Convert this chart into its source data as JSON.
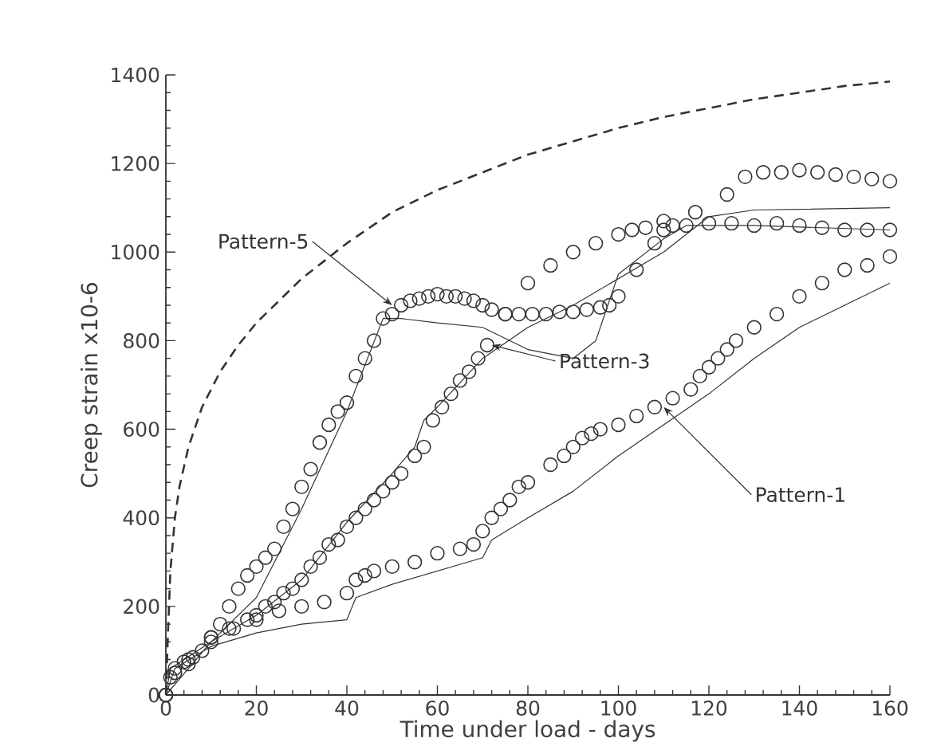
{
  "chart_data": {
    "type": "line",
    "xlabel": "Time under load - days",
    "ylabel": "Creep strain x10-6",
    "xlim": [
      0,
      160
    ],
    "ylim": [
      0,
      1400
    ],
    "xticks": [
      0,
      20,
      40,
      60,
      80,
      100,
      120,
      140,
      160
    ],
    "yticks": [
      0,
      200,
      400,
      600,
      800,
      1000,
      1200,
      1400
    ],
    "grid": false,
    "annotations": [
      {
        "text": "Pattern-5",
        "x": 50,
        "y": 880
      },
      {
        "text": "Pattern-3",
        "x": 72,
        "y": 790
      },
      {
        "text": "Pattern-1",
        "x": 110,
        "y": 650
      }
    ],
    "series": [
      {
        "line_style": "dashed",
        "color": "#333333",
        "x": [
          0,
          0.5,
          1,
          2,
          3,
          5,
          8,
          12,
          16,
          20,
          30,
          40,
          50,
          60,
          70,
          80,
          90,
          100,
          110,
          120,
          130,
          140,
          150,
          160
        ],
        "values": [
          0,
          150,
          280,
          400,
          470,
          560,
          650,
          730,
          790,
          840,
          940,
          1020,
          1090,
          1140,
          1180,
          1220,
          1250,
          1280,
          1305,
          1325,
          1345,
          1360,
          1375,
          1385
        ]
      },
      {
        "type": "scatter",
        "marker": "circle",
        "color": "#333333",
        "x": [
          0,
          1,
          2,
          4,
          6,
          8,
          10,
          12,
          14,
          16,
          18,
          20,
          22,
          24,
          26,
          28,
          30,
          32,
          34,
          36,
          38,
          40,
          42,
          44,
          46,
          48,
          50,
          52,
          54,
          56,
          58,
          60,
          62,
          64,
          66,
          68,
          70,
          72,
          75,
          78,
          81,
          84,
          87,
          90,
          93,
          96,
          98,
          100,
          104,
          108,
          110,
          112,
          115,
          120,
          125,
          130,
          135,
          140,
          145,
          150,
          155,
          160
        ],
        "values": [
          0,
          40,
          60,
          75,
          85,
          100,
          130,
          160,
          200,
          240,
          270,
          290,
          310,
          330,
          380,
          420,
          470,
          510,
          570,
          610,
          640,
          660,
          720,
          760,
          800,
          850,
          860,
          880,
          890,
          895,
          900,
          905,
          900,
          900,
          895,
          890,
          880,
          870,
          860,
          860,
          860,
          860,
          865,
          865,
          870,
          875,
          880,
          900,
          960,
          1020,
          1050,
          1060,
          1060,
          1065,
          1065,
          1060,
          1065,
          1060,
          1055,
          1050,
          1050,
          1050
        ]
      },
      {
        "color": "#333333",
        "x": [
          0,
          1,
          10,
          20,
          30,
          40,
          48,
          52,
          60,
          70,
          80,
          90,
          95,
          100,
          110,
          115,
          130,
          160
        ],
        "values": [
          0,
          60,
          120,
          220,
          420,
          640,
          850,
          850,
          840,
          830,
          780,
          760,
          800,
          950,
          1030,
          1060,
          1060,
          1050
        ]
      },
      {
        "type": "scatter",
        "marker": "circle",
        "color": "#333333",
        "x": [
          0,
          2,
          5,
          10,
          14,
          18,
          20,
          22,
          24,
          26,
          28,
          30,
          32,
          34,
          36,
          38,
          40,
          42,
          44,
          46,
          48,
          50,
          52,
          55,
          57,
          59,
          61,
          63,
          65,
          67,
          69,
          71,
          75,
          80,
          85,
          90,
          95,
          100,
          103,
          106,
          110,
          117,
          124,
          128,
          132,
          136,
          140,
          144,
          148,
          152,
          156,
          160
        ],
        "values": [
          0,
          50,
          80,
          130,
          150,
          170,
          180,
          200,
          210,
          230,
          240,
          260,
          290,
          310,
          340,
          350,
          380,
          400,
          420,
          440,
          460,
          480,
          500,
          540,
          560,
          620,
          650,
          680,
          710,
          730,
          760,
          790,
          860,
          930,
          970,
          1000,
          1020,
          1040,
          1050,
          1055,
          1070,
          1090,
          1130,
          1170,
          1180,
          1180,
          1185,
          1180,
          1175,
          1170,
          1165,
          1160
        ]
      },
      {
        "color": "#333333",
        "x": [
          0,
          10,
          20,
          30,
          40,
          50,
          55,
          57,
          60,
          70,
          80,
          90,
          100,
          110,
          120,
          130,
          160
        ],
        "values": [
          0,
          120,
          180,
          260,
          390,
          500,
          560,
          620,
          650,
          760,
          830,
          880,
          940,
          1000,
          1080,
          1095,
          1100
        ]
      },
      {
        "type": "scatter",
        "marker": "circle",
        "color": "#333333",
        "x": [
          0,
          5,
          10,
          15,
          20,
          25,
          30,
          35,
          40,
          42,
          44,
          46,
          50,
          55,
          60,
          65,
          68,
          70,
          72,
          74,
          76,
          78,
          80,
          85,
          88,
          90,
          92,
          94,
          96,
          100,
          104,
          108,
          112,
          116,
          118,
          120,
          122,
          124,
          126,
          130,
          135,
          140,
          145,
          150,
          155,
          160
        ],
        "values": [
          0,
          70,
          120,
          150,
          170,
          190,
          200,
          210,
          230,
          260,
          270,
          280,
          290,
          300,
          320,
          330,
          340,
          370,
          400,
          420,
          440,
          470,
          480,
          520,
          540,
          560,
          580,
          590,
          600,
          610,
          630,
          650,
          670,
          690,
          720,
          740,
          760,
          780,
          800,
          830,
          860,
          900,
          930,
          960,
          970,
          990
        ]
      },
      {
        "color": "#333333",
        "x": [
          0,
          2,
          10,
          20,
          30,
          40,
          42,
          50,
          60,
          70,
          72,
          80,
          90,
          95,
          100,
          110,
          120,
          125,
          130,
          140,
          150,
          160
        ],
        "values": [
          0,
          60,
          110,
          140,
          160,
          170,
          220,
          250,
          280,
          310,
          350,
          400,
          460,
          500,
          540,
          610,
          680,
          720,
          760,
          830,
          880,
          930
        ]
      }
    ]
  }
}
